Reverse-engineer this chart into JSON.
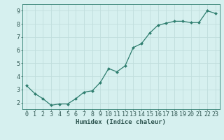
{
  "x": [
    0,
    1,
    2,
    3,
    4,
    5,
    6,
    7,
    8,
    9,
    10,
    11,
    12,
    13,
    14,
    15,
    16,
    17,
    18,
    19,
    20,
    21,
    22,
    23
  ],
  "y": [
    3.3,
    2.7,
    2.3,
    1.8,
    1.9,
    1.9,
    2.3,
    2.8,
    2.9,
    3.55,
    4.6,
    4.35,
    4.8,
    6.2,
    6.5,
    7.3,
    7.9,
    8.05,
    8.2,
    8.2,
    8.1,
    8.1,
    9.0,
    8.8
  ],
  "line_color": "#2e7d6e",
  "marker": "D",
  "marker_size": 2.0,
  "bg_color": "#d6f0ef",
  "grid_color": "#c0dedd",
  "axis_color": "#2e7d6e",
  "xlabel": "Humidex (Indice chaleur)",
  "ylim": [
    1.5,
    9.5
  ],
  "xlim": [
    -0.5,
    23.5
  ],
  "yticks": [
    2,
    3,
    4,
    5,
    6,
    7,
    8,
    9
  ],
  "xticks": [
    0,
    1,
    2,
    3,
    4,
    5,
    6,
    7,
    8,
    9,
    10,
    11,
    12,
    13,
    14,
    15,
    16,
    17,
    18,
    19,
    20,
    21,
    22,
    23
  ],
  "font_color": "#2e5550",
  "label_fontsize": 6.5,
  "tick_fontsize": 6.0,
  "linewidth": 0.9
}
